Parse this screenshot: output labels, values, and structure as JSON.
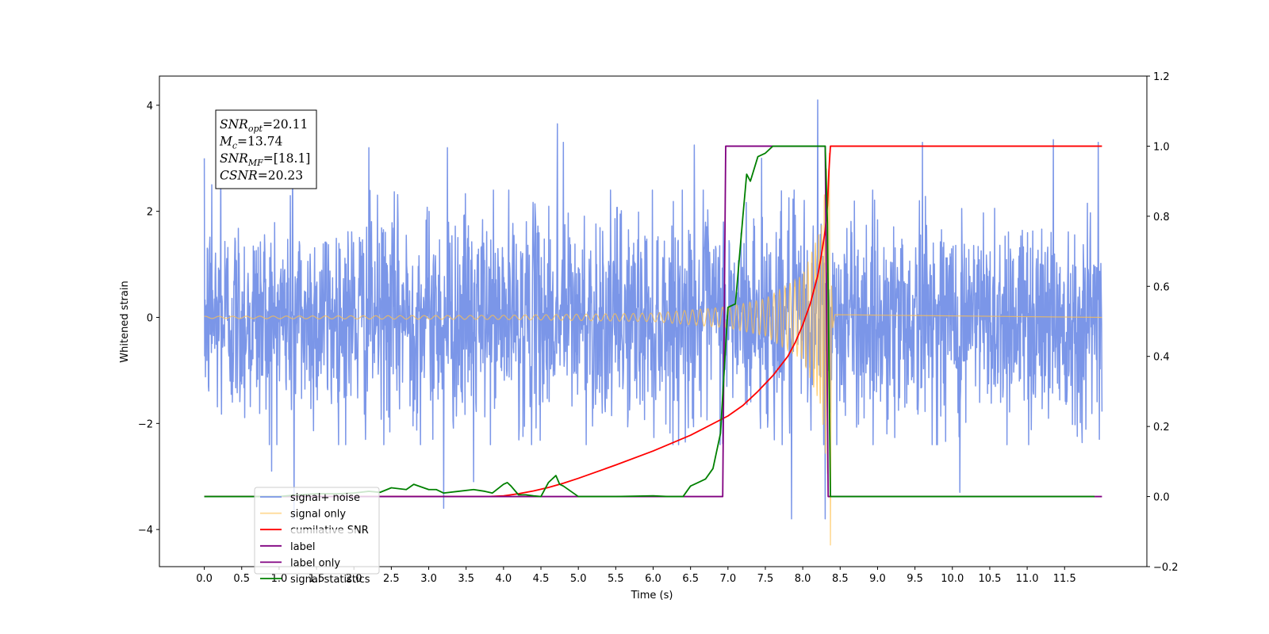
{
  "chart_data": {
    "type": "line",
    "xlabel": "Time (s)",
    "ylabel": "Whitened strain",
    "ylabel_right": "",
    "xlim": [
      -0.6,
      12.6
    ],
    "ylim_left": [
      -4.7,
      4.55
    ],
    "ylim_right": [
      -0.2,
      1.2
    ],
    "x_ticks": [
      0.0,
      0.5,
      1.0,
      1.5,
      2.0,
      2.5,
      3.0,
      3.5,
      4.0,
      4.5,
      5.0,
      5.5,
      6.0,
      6.5,
      7.0,
      7.5,
      8.0,
      8.5,
      9.0,
      9.5,
      10.0,
      10.5,
      11.0,
      11.5
    ],
    "x_tick_labels": [
      "0.0",
      "0.5",
      "1.0",
      "1.5",
      "2.0",
      "2.5",
      "3.0",
      "3.5",
      "4.0",
      "4.5",
      "5.0",
      "5.5",
      "6.0",
      "6.5",
      "7.0",
      "7.5",
      "8.0",
      "8.5",
      "9.0",
      "9.5",
      "10.0",
      "10.5",
      "11.0",
      "11.5"
    ],
    "y_left_ticks": [
      -4,
      -2,
      0,
      2,
      4
    ],
    "y_left_tick_labels": [
      "−4",
      "−2",
      "0",
      "2",
      "4"
    ],
    "y_right_ticks": [
      -0.2,
      0.0,
      0.2,
      0.4,
      0.6,
      0.8,
      1.0,
      1.2
    ],
    "y_right_tick_labels": [
      "−0.2",
      "0.0",
      "0.2",
      "0.4",
      "0.6",
      "0.8",
      "1.0",
      "1.2"
    ],
    "grid": false,
    "legend_placement": "lower-left",
    "annotation": [
      {
        "sym": "SNR",
        "sub": "opt",
        "rest": "=20.11"
      },
      {
        "sym": "M",
        "sub": "c",
        "rest": "=13.74"
      },
      {
        "sym": "SNR",
        "sub": "MF",
        "rest": "=[18.1]"
      },
      {
        "sym": "CSNR",
        "sub": "",
        "rest": "=20.23"
      }
    ],
    "series": [
      {
        "name": "signal+ noise",
        "axis": "left",
        "color": "#7b96e8",
        "kind": "noise",
        "x_range": [
          0.0,
          12.0
        ],
        "typical_envelope": 1.6,
        "peak_values": [
          {
            "x": 0.0,
            "y": 3.0
          },
          {
            "x": 0.1,
            "y": 2.5
          },
          {
            "x": 0.22,
            "y": 3.3
          },
          {
            "x": 0.9,
            "y": -2.9
          },
          {
            "x": 1.18,
            "y": 3.2
          },
          {
            "x": 1.2,
            "y": -3.8
          },
          {
            "x": 2.2,
            "y": 3.2
          },
          {
            "x": 3.2,
            "y": -3.6
          },
          {
            "x": 3.25,
            "y": 3.2
          },
          {
            "x": 3.6,
            "y": -3.1
          },
          {
            "x": 4.72,
            "y": 3.65
          },
          {
            "x": 4.8,
            "y": 3.3
          },
          {
            "x": 6.55,
            "y": 3.25
          },
          {
            "x": 7.45,
            "y": 3.0
          },
          {
            "x": 7.85,
            "y": -3.8
          },
          {
            "x": 8.2,
            "y": 4.1
          },
          {
            "x": 8.3,
            "y": -3.8
          },
          {
            "x": 9.6,
            "y": 3.3
          },
          {
            "x": 10.1,
            "y": -3.3
          },
          {
            "x": 11.35,
            "y": 3.35
          },
          {
            "x": 11.95,
            "y": 3.3
          }
        ]
      },
      {
        "name": "signal only",
        "axis": "left",
        "color": "#ffc04d",
        "kind": "chirp",
        "x_range": [
          0.0,
          12.0
        ],
        "merger_time": 8.37,
        "amplitude_points": [
          {
            "x": 0.0,
            "y": 0.02
          },
          {
            "x": 4.0,
            "y": 0.04
          },
          {
            "x": 6.0,
            "y": 0.08
          },
          {
            "x": 7.0,
            "y": 0.2
          },
          {
            "x": 7.5,
            "y": 0.35
          },
          {
            "x": 8.0,
            "y": 0.8
          },
          {
            "x": 8.25,
            "y": 1.7
          },
          {
            "x": 8.33,
            "y": 3.0
          }
        ],
        "merger_min": -4.3,
        "merger_max": 3.1
      },
      {
        "name": "cumilative SNR",
        "axis": "right",
        "color": "#ff0000",
        "x": [
          0.0,
          3.8,
          4.0,
          4.2,
          4.4,
          4.6,
          4.8,
          5.0,
          5.5,
          6.0,
          6.5,
          7.0,
          7.2,
          7.4,
          7.6,
          7.8,
          7.9,
          8.0,
          8.1,
          8.2,
          8.25,
          8.3,
          8.33,
          8.35,
          8.37,
          8.4,
          12.0
        ],
        "values": [
          0.0,
          0.0,
          0.002,
          0.008,
          0.016,
          0.026,
          0.038,
          0.052,
          0.09,
          0.13,
          0.175,
          0.23,
          0.26,
          0.3,
          0.345,
          0.4,
          0.44,
          0.49,
          0.55,
          0.63,
          0.69,
          0.76,
          0.83,
          0.93,
          1.0,
          1.0,
          1.0
        ]
      },
      {
        "name": "label",
        "axis": "right",
        "color": "#800080",
        "x": [
          0.0,
          6.93,
          6.97,
          8.3,
          8.34,
          12.0
        ],
        "values": [
          0.0,
          0.0,
          1.0,
          1.0,
          0.0,
          0.0
        ]
      },
      {
        "name": "label only",
        "axis": "right",
        "color": "#800080",
        "obscured": true,
        "x": [],
        "values": []
      },
      {
        "name": "signal statistics",
        "axis": "right",
        "color": "#008000",
        "x": [
          0.0,
          0.5,
          1.0,
          1.2,
          1.5,
          1.8,
          2.0,
          2.2,
          2.35,
          2.5,
          2.7,
          2.8,
          3.0,
          3.1,
          3.2,
          3.4,
          3.6,
          3.75,
          3.85,
          4.0,
          4.05,
          4.1,
          4.2,
          4.3,
          4.4,
          4.5,
          4.6,
          4.7,
          4.75,
          4.8,
          4.9,
          5.0,
          5.5,
          6.0,
          6.2,
          6.4,
          6.45,
          6.5,
          6.6,
          6.7,
          6.8,
          6.9,
          7.0,
          7.1,
          7.2,
          7.25,
          7.3,
          7.4,
          7.5,
          7.6,
          7.7,
          8.0,
          8.3,
          8.33,
          8.37,
          8.4,
          11.9
        ],
        "values": [
          0.0,
          0.0,
          0.0,
          0.004,
          0.008,
          0.008,
          0.01,
          0.015,
          0.012,
          0.025,
          0.02,
          0.035,
          0.02,
          0.02,
          0.01,
          0.015,
          0.02,
          0.015,
          0.01,
          0.035,
          0.04,
          0.03,
          0.005,
          0.005,
          0.002,
          0.0,
          0.04,
          0.06,
          0.035,
          0.03,
          0.015,
          0.0,
          0.0,
          0.002,
          0.0,
          0.0,
          0.015,
          0.03,
          0.04,
          0.05,
          0.08,
          0.18,
          0.54,
          0.55,
          0.8,
          0.92,
          0.9,
          0.97,
          0.98,
          1.0,
          1.0,
          1.0,
          1.0,
          0.78,
          0.0,
          0.0,
          0.0
        ]
      }
    ]
  }
}
